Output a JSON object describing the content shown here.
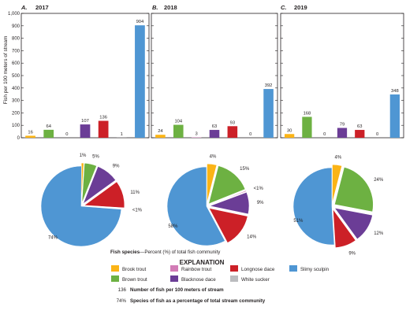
{
  "chart_data": {
    "type": "bar",
    "y_axis_label": "Fish per 100 meters of stream",
    "ylim": [
      0,
      1000
    ],
    "y_ticks": [
      "0",
      "100",
      "200",
      "300",
      "400",
      "500",
      "600",
      "700",
      "800",
      "900",
      "1,000"
    ],
    "species": [
      {
        "name": "Brook trout",
        "color": "#fbb416"
      },
      {
        "name": "Brown trout",
        "color": "#6db142"
      },
      {
        "name": "Rainbow trout",
        "color": "#d27cb6"
      },
      {
        "name": "Blacknose dace",
        "color": "#6b3d96"
      },
      {
        "name": "Longnose dace",
        "color": "#cc2027"
      },
      {
        "name": "White sucker",
        "color": "#bbbcbf"
      },
      {
        "name": "Slimy sculpin",
        "color": "#4f96d3"
      }
    ],
    "bar_order": [
      "Brook trout",
      "Brown trout",
      "Rainbow trout",
      "Blacknose dace",
      "Longnose dace",
      "White sucker",
      "Slimy sculpin"
    ],
    "panels": [
      {
        "letter": "A.",
        "year": "2017",
        "values": [
          16,
          64,
          0,
          107,
          136,
          1,
          904
        ],
        "value_labels": [
          "16",
          "64",
          "0",
          "107",
          "136",
          "1",
          "904"
        ],
        "pie": [
          {
            "species": "Brook trout",
            "percent": 1,
            "label": "1%"
          },
          {
            "species": "Brown trout",
            "percent": 5,
            "label": "5%"
          },
          {
            "species": "Blacknose dace",
            "percent": 9,
            "label": "9%"
          },
          {
            "species": "Longnose dace",
            "percent": 11,
            "label": "11%"
          },
          {
            "species": "White sucker",
            "percent": 0.1,
            "label": "<1%"
          },
          {
            "species": "Slimy sculpin",
            "percent": 74,
            "label": "74%"
          }
        ]
      },
      {
        "letter": "B.",
        "year": "2018",
        "values": [
          24,
          104,
          3,
          63,
          93,
          0,
          392
        ],
        "value_labels": [
          "24",
          "104",
          "3",
          "63",
          "93",
          "0",
          "392"
        ],
        "pie": [
          {
            "species": "Brook trout",
            "percent": 4,
            "label": "4%"
          },
          {
            "species": "Brown trout",
            "percent": 15,
            "label": "15%"
          },
          {
            "species": "Rainbow trout",
            "percent": 0.4,
            "label": "<1%"
          },
          {
            "species": "Blacknose dace",
            "percent": 9,
            "label": "9%"
          },
          {
            "species": "Longnose dace",
            "percent": 14,
            "label": "14%"
          },
          {
            "species": "Slimy sculpin",
            "percent": 58,
            "label": "58%"
          }
        ]
      },
      {
        "letter": "C.",
        "year": "2019",
        "values": [
          30,
          168,
          0,
          79,
          63,
          0,
          348
        ],
        "value_labels": [
          "30",
          "168",
          "0",
          "79",
          "63",
          "0",
          "348"
        ],
        "pie": [
          {
            "species": "Brook trout",
            "percent": 4,
            "label": "4%"
          },
          {
            "species": "Brown trout",
            "percent": 24,
            "label": "24%"
          },
          {
            "species": "Blacknose dace",
            "percent": 12,
            "label": "12%"
          },
          {
            "species": "Longnose dace",
            "percent": 9,
            "label": "9%"
          },
          {
            "species": "Slimy sculpin",
            "percent": 51,
            "label": "51%"
          }
        ]
      }
    ]
  },
  "explanation": {
    "title": "EXPLANATION",
    "species_heading_bold": "Fish species",
    "species_heading_rest": "—Percent (%) of total fish community",
    "legend_items": [
      {
        "name": "Brook trout",
        "color": "#fbb416"
      },
      {
        "name": "Rainbow trout",
        "color": "#d27cb6"
      },
      {
        "name": "Longnose dace",
        "color": "#cc2027"
      },
      {
        "name": "Slimy sculpin",
        "color": "#4f96d3"
      },
      {
        "name": "Brown trout",
        "color": "#6db142"
      },
      {
        "name": "Blacknose dace",
        "color": "#6b3d96"
      },
      {
        "name": "White sucker",
        "color": "#bbbcbf"
      }
    ],
    "count_example": "136",
    "count_desc": "Number of fish per 100 meters of stream",
    "pct_example": "74%",
    "pct_desc": "Species of fish as a percentage of total stream community"
  }
}
